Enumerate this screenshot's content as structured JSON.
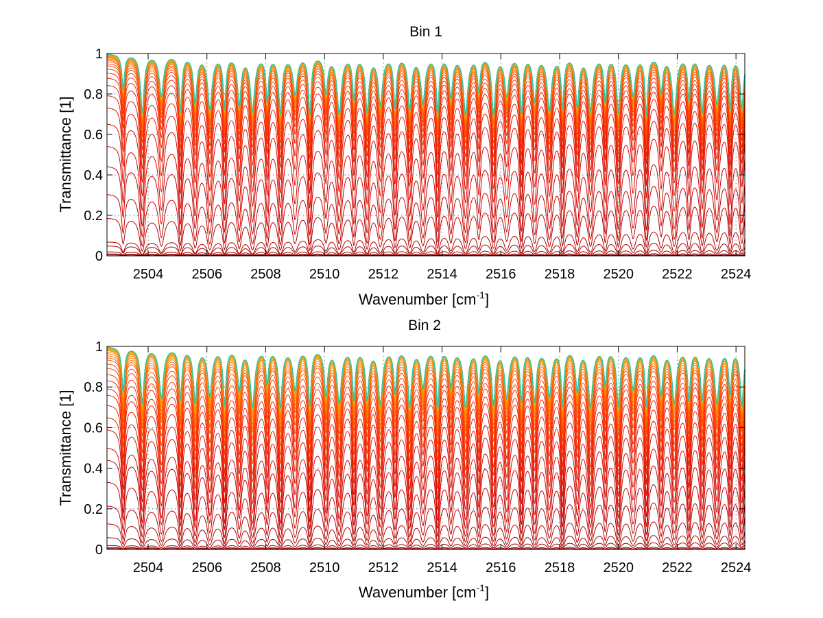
{
  "chart_data": [
    {
      "type": "line",
      "title": "Bin 1",
      "xlabel": "Wavenumber [cm",
      "xlabel_sup": "-1",
      "xlabel_suffix": "]",
      "ylabel": "Transmittance [1]",
      "xlim": [
        2502.6,
        2524.3
      ],
      "ylim": [
        0,
        1
      ],
      "xticks": [
        2504,
        2506,
        2508,
        2510,
        2512,
        2514,
        2516,
        2518,
        2520,
        2522,
        2524
      ],
      "xtick_labels": [
        "2504",
        "2506",
        "2508",
        "2510",
        "2512",
        "2514",
        "2516",
        "2518",
        "2520",
        "2522",
        "2524"
      ],
      "yticks": [
        0,
        0.2,
        0.4,
        0.6,
        0.8,
        1
      ],
      "ytick_labels": [
        "0",
        "0.2",
        "0.4",
        "0.6",
        "0.8",
        "1"
      ],
      "grid": true,
      "grid_style": "dotted",
      "series_count": 40,
      "color_map": [
        "#7f0000",
        "#cc0000",
        "#ff3300",
        "#ff8800",
        "#ffc000",
        "#40c0a0"
      ],
      "absorption_lines_cm-1": [
        2503.15,
        2503.8,
        2504.45,
        2505.1,
        2505.6,
        2506.1,
        2506.6,
        2507.1,
        2507.55,
        2508.05,
        2508.5,
        2509.0,
        2509.5,
        2510.05,
        2510.5,
        2511.0,
        2511.45,
        2511.9,
        2512.4,
        2512.9,
        2513.35,
        2513.85,
        2514.3,
        2514.8,
        2515.25,
        2515.75,
        2516.2,
        2516.7,
        2517.15,
        2517.65,
        2518.1,
        2518.6,
        2519.05,
        2519.55,
        2520.0,
        2520.5,
        2520.95,
        2521.45,
        2521.9,
        2522.4,
        2522.85,
        2523.35,
        2523.8,
        2524.2
      ],
      "base_levels_at_left": [
        0.0,
        0.005,
        0.01,
        0.02,
        0.05,
        0.07,
        0.19,
        0.31,
        0.45,
        0.55,
        0.66,
        0.74,
        0.8,
        0.85,
        0.885,
        0.91,
        0.93,
        0.945,
        0.955,
        0.965,
        0.972,
        0.978,
        0.983,
        0.987,
        0.99,
        0.992,
        0.994,
        0.996,
        0.997,
        0.998,
        0.9985,
        0.999,
        0.9993,
        0.9995,
        0.9997,
        0.9998,
        0.9999,
        1.0,
        1.0,
        1.0
      ],
      "base_levels_at_right": [
        0.0,
        0.006,
        0.015,
        0.04,
        0.09,
        0.17,
        0.33,
        0.44,
        0.55,
        0.68,
        0.76,
        0.81,
        0.85,
        0.88,
        0.9,
        0.92,
        0.935,
        0.95,
        0.96,
        0.968,
        0.975,
        0.98,
        0.985,
        0.988,
        0.991,
        0.993,
        0.995,
        0.996,
        0.997,
        0.998,
        0.9985,
        0.999,
        0.9993,
        0.9995,
        0.9997,
        0.9998,
        0.9999,
        1.0,
        1.0,
        1.0
      ]
    },
    {
      "type": "line",
      "title": "Bin 2",
      "xlabel": "Wavenumber [cm",
      "xlabel_sup": "-1",
      "xlabel_suffix": "]",
      "ylabel": "Transmittance [1]",
      "xlim": [
        2502.6,
        2524.3
      ],
      "ylim": [
        0,
        1
      ],
      "xticks": [
        2504,
        2506,
        2508,
        2510,
        2512,
        2514,
        2516,
        2518,
        2520,
        2522,
        2524
      ],
      "xtick_labels": [
        "2504",
        "2506",
        "2508",
        "2510",
        "2512",
        "2514",
        "2516",
        "2518",
        "2520",
        "2522",
        "2524"
      ],
      "yticks": [
        0,
        0.2,
        0.4,
        0.6,
        0.8,
        1
      ],
      "ytick_labels": [
        "0",
        "0.2",
        "0.4",
        "0.6",
        "0.8",
        "1"
      ],
      "grid": true,
      "grid_style": "dotted",
      "series_count": 40,
      "color_map": [
        "#7f0000",
        "#cc0000",
        "#ff3300",
        "#ff8800",
        "#ffc000",
        "#40c0a0"
      ],
      "absorption_lines_cm-1": [
        2503.15,
        2503.8,
        2504.45,
        2505.1,
        2505.6,
        2506.1,
        2506.6,
        2507.1,
        2507.55,
        2508.05,
        2508.5,
        2509.0,
        2509.5,
        2510.05,
        2510.5,
        2511.0,
        2511.45,
        2511.9,
        2512.4,
        2512.9,
        2513.35,
        2513.85,
        2514.3,
        2514.8,
        2515.25,
        2515.75,
        2516.2,
        2516.7,
        2517.15,
        2517.65,
        2518.1,
        2518.6,
        2519.05,
        2519.55,
        2520.0,
        2520.5,
        2520.95,
        2521.45,
        2521.9,
        2522.4,
        2522.85,
        2523.35,
        2523.8,
        2524.2
      ],
      "base_levels_at_left": [
        0.0,
        0.005,
        0.01,
        0.02,
        0.06,
        0.13,
        0.22,
        0.34,
        0.45,
        0.51,
        0.6,
        0.66,
        0.72,
        0.77,
        0.8,
        0.84,
        0.87,
        0.9,
        0.92,
        0.94,
        0.95,
        0.96,
        0.97,
        0.978,
        0.984,
        0.988,
        0.991,
        0.994,
        0.996,
        0.997,
        0.998,
        0.9985,
        0.999,
        0.9993,
        0.9995,
        0.9997,
        0.9998,
        0.9999,
        1.0,
        1.0
      ],
      "base_levels_at_right": [
        0.0,
        0.006,
        0.015,
        0.05,
        0.1,
        0.19,
        0.31,
        0.41,
        0.51,
        0.6,
        0.67,
        0.73,
        0.78,
        0.82,
        0.85,
        0.88,
        0.9,
        0.92,
        0.94,
        0.95,
        0.96,
        0.97,
        0.978,
        0.984,
        0.988,
        0.991,
        0.994,
        0.996,
        0.997,
        0.998,
        0.9985,
        0.999,
        0.9993,
        0.9995,
        0.9997,
        0.9998,
        0.9999,
        1.0,
        1.0,
        1.0
      ]
    }
  ]
}
